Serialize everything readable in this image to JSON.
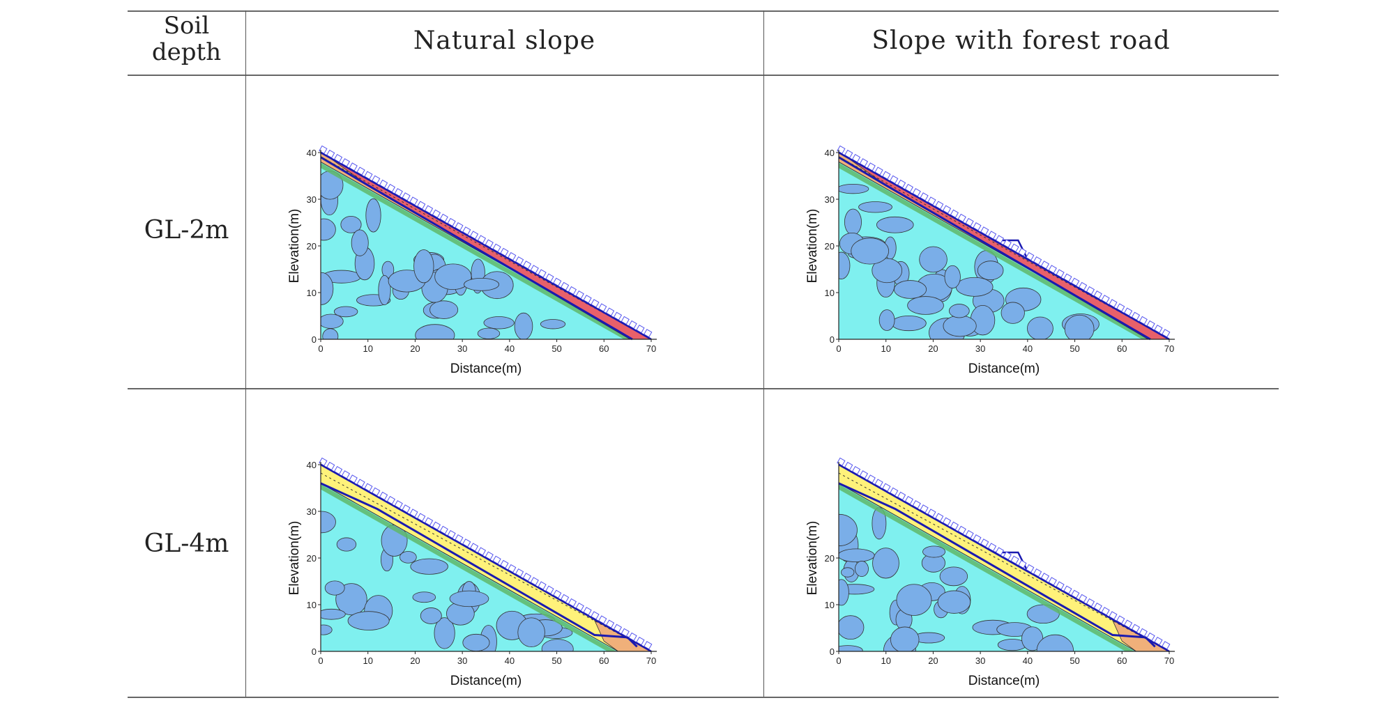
{
  "table": {
    "col_headers": {
      "soil_depth": "Soil\ndepth",
      "natural": "Natural slope",
      "road": "Slope with forest road"
    },
    "rows": [
      {
        "label": "GL-2m"
      },
      {
        "label": "GL-4m"
      }
    ]
  },
  "chart_data": [
    {
      "type": "diagram",
      "id": "gl2-natural",
      "xlabel": "Distance(m)",
      "ylabel": "Elevation(m)",
      "xticks": [
        0,
        10,
        20,
        30,
        40,
        50,
        60,
        70
      ],
      "yticks": [
        0,
        10,
        20,
        30,
        40
      ],
      "xlim": [
        0,
        70
      ],
      "ylim": [
        0,
        40
      ],
      "soil_depth_m": 2,
      "forest_road": false,
      "layer_color": "#f0b07a",
      "failure_color": "#e8606a"
    },
    {
      "type": "diagram",
      "id": "gl2-road",
      "xlabel": "Distance(m)",
      "ylabel": "Elevation(m)",
      "xticks": [
        0,
        10,
        20,
        30,
        40,
        50,
        60,
        70
      ],
      "yticks": [
        0,
        10,
        20,
        30,
        40
      ],
      "xlim": [
        0,
        70
      ],
      "ylim": [
        0,
        40
      ],
      "soil_depth_m": 2,
      "forest_road": true,
      "layer_color": "#f0b07a",
      "failure_color": "#e8606a"
    },
    {
      "type": "diagram",
      "id": "gl4-natural",
      "xlabel": "Distance(m)",
      "ylabel": "Elevation(m)",
      "xticks": [
        0,
        10,
        20,
        30,
        40,
        50,
        60,
        70
      ],
      "yticks": [
        0,
        10,
        20,
        30,
        40
      ],
      "xlim": [
        0,
        70
      ],
      "ylim": [
        0,
        40
      ],
      "soil_depth_m": 4,
      "forest_road": false,
      "layer_color": "#fff27a",
      "failure_color": "#f0b07a"
    },
    {
      "type": "diagram",
      "id": "gl4-road",
      "xlabel": "Distance(m)",
      "ylabel": "Elevation(m)",
      "xticks": [
        0,
        10,
        20,
        30,
        40,
        50,
        60,
        70
      ],
      "yticks": [
        0,
        10,
        20
      ],
      "xlim": [
        0,
        70
      ],
      "ylim": [
        0,
        40
      ],
      "soil_depth_m": 4,
      "forest_road": true,
      "layer_color": "#fff27a",
      "failure_color": "#f0b07a"
    }
  ],
  "colors": {
    "bedrock": "#7ff0ef",
    "blob": "#7aaee8",
    "band": "#5fb86a",
    "line": "#1a1ab0",
    "load": "#5555ee"
  }
}
